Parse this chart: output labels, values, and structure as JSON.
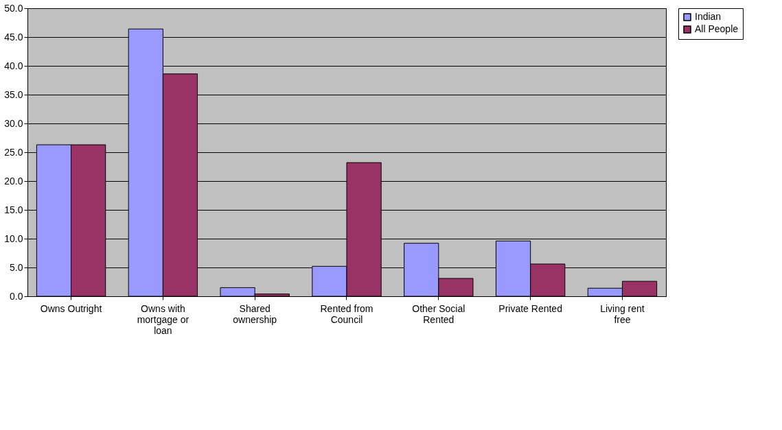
{
  "chart_data": {
    "type": "bar",
    "categories": [
      "Owns Outright",
      "Owns with mortgage or loan",
      "Shared ownership",
      "Rented from Council",
      "Other Social Rented",
      "Private Rented",
      "Living rent free"
    ],
    "series": [
      {
        "name": "Indian",
        "color": "#9999ff",
        "values": [
          26.3,
          46.4,
          1.5,
          5.2,
          9.2,
          9.6,
          1.4
        ]
      },
      {
        "name": "All People",
        "color": "#993366",
        "values": [
          26.3,
          38.6,
          0.4,
          23.2,
          3.1,
          5.6,
          2.6
        ]
      }
    ],
    "ylim": [
      0,
      50
    ],
    "yticks": [
      {
        "value": 0,
        "label": "0.0"
      },
      {
        "value": 5,
        "label": "5.0"
      },
      {
        "value": 10,
        "label": "10.0"
      },
      {
        "value": 15,
        "label": "15.0"
      },
      {
        "value": 20,
        "label": "20.0"
      },
      {
        "value": 25,
        "label": "25.0"
      },
      {
        "value": 30,
        "label": "30.0"
      },
      {
        "value": 35,
        "label": "35.0"
      },
      {
        "value": 40,
        "label": "40.0"
      },
      {
        "value": 45,
        "label": "45.0"
      },
      {
        "value": 50,
        "label": "50.0"
      }
    ],
    "grid": "y",
    "legend": "right"
  }
}
